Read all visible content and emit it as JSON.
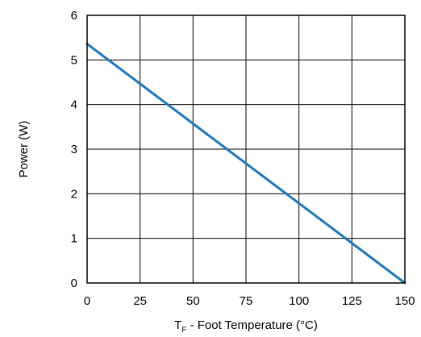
{
  "chart_data": {
    "type": "line",
    "xlabel": "T",
    "xlabel_subscript": "F",
    "xlabel_rest": " - Foot Temperature (°C)",
    "ylabel": "Power (W)",
    "xlim": [
      0,
      150
    ],
    "ylim": [
      0,
      6
    ],
    "xticks": [
      "0",
      "25",
      "50",
      "75",
      "100",
      "125",
      "150"
    ],
    "yticks": [
      "0",
      "1",
      "2",
      "3",
      "4",
      "5",
      "6"
    ],
    "grid": true,
    "series": [
      {
        "x": [
          0,
          150
        ],
        "y": [
          5.36,
          0
        ],
        "color": "#1f77b4"
      }
    ]
  }
}
